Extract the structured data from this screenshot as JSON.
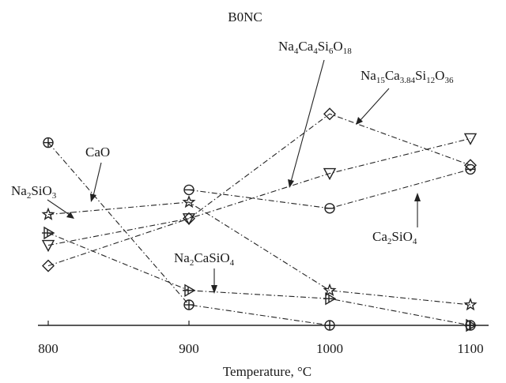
{
  "chart_data": {
    "type": "line",
    "title": "B0NC",
    "xlabel": "Temperature, °C",
    "ylabel": "",
    "x": [
      800,
      900,
      1000,
      1100
    ],
    "xlim": [
      800,
      1120
    ],
    "ylim": [
      0,
      1
    ],
    "grid": false,
    "legend": "none",
    "series": [
      {
        "name": "CaO",
        "marker": "circle-plus",
        "values": [
          0.89,
          0.1,
          0.0,
          0.0
        ]
      },
      {
        "name": "Na2SiO3",
        "marker": "star",
        "values": [
          0.54,
          0.6,
          0.17,
          0.1
        ]
      },
      {
        "name": "Na4Ca4Si6O18",
        "marker": "triangle-down",
        "values": [
          0.39,
          0.52,
          0.74,
          0.91
        ]
      },
      {
        "name": "Na15Ca3.84Si12O36",
        "marker": "diamond",
        "values": [
          0.29,
          0.52,
          1.03,
          0.78
        ]
      },
      {
        "name": "Ca2SiO4",
        "marker": "circle-minus",
        "values": [
          null,
          0.66,
          0.57,
          0.76
        ]
      },
      {
        "name": "Na2CaSiO4",
        "marker": "triangle-right-cross",
        "values": [
          0.45,
          0.17,
          0.13,
          0.0
        ]
      }
    ],
    "annotations": [
      {
        "series": "CaO",
        "base": "CaO",
        "sub": ""
      },
      {
        "series": "Na2SiO3",
        "base": "Na",
        "sub": "2",
        "rest": "SiO",
        "sub2": "3"
      },
      {
        "series": "Na4Ca4Si6O18",
        "text": "Na4Ca4Si6O18"
      },
      {
        "series": "Na15Ca3.84Si12O36",
        "text": "Na15Ca3.84Si12O36"
      },
      {
        "series": "Ca2SiO4",
        "text": "Ca2SiO4"
      },
      {
        "series": "Na2CaSiO4",
        "text": "Na2CaSiO4"
      }
    ]
  },
  "labels": {
    "title": "B0NC",
    "xlabel": "Temperature, °C",
    "ticks": [
      "800",
      "900",
      "1000",
      "1100"
    ],
    "cao": "CaO",
    "na2sio3": {
      "a": "Na",
      "s1": "2",
      "b": "SiO",
      "s2": "3"
    },
    "na4": {
      "a": "Na",
      "s1": "4",
      "b": "Ca",
      "s2": "4",
      "c": "Si",
      "s3": "6",
      "d": "O",
      "s4": "18"
    },
    "na15": {
      "a": "Na",
      "s1": "15",
      "b": "Ca",
      "s2": "3.84",
      "c": "Si",
      "s3": "12",
      "d": "O",
      "s4": "36"
    },
    "ca2sio4": {
      "a": "Ca",
      "s1": "2",
      "b": "SiO",
      "s2": "4"
    },
    "na2casio4": {
      "a": "Na",
      "s1": "2",
      "b": "CaSiO",
      "s2": "4"
    }
  }
}
